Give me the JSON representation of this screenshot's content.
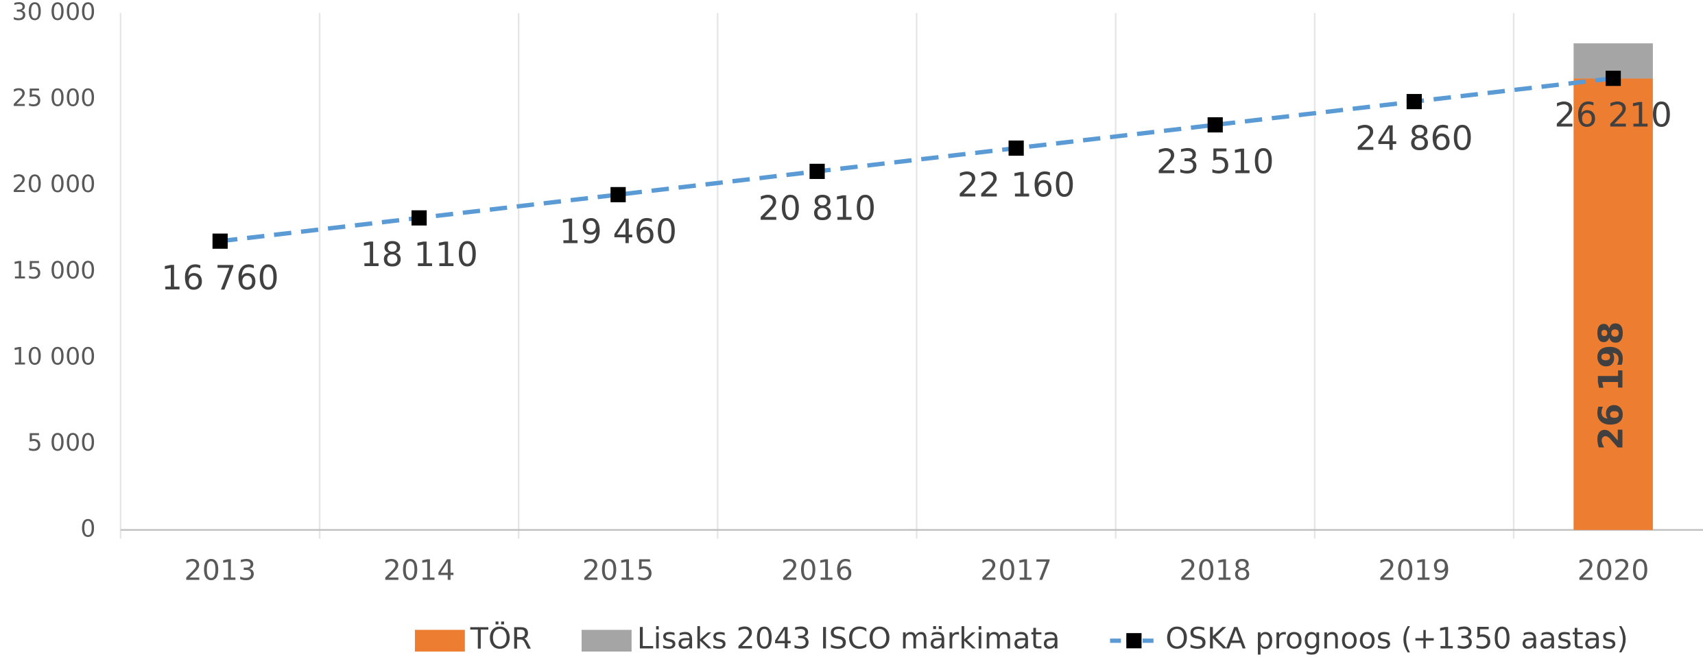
{
  "chart_data": {
    "type": "bar",
    "categories": [
      "2013",
      "2014",
      "2015",
      "2016",
      "2017",
      "2018",
      "2019",
      "2020"
    ],
    "series": [
      {
        "name": "TÖR",
        "color": "#ED7D31",
        "values": [
          null,
          null,
          null,
          null,
          null,
          null,
          null,
          26198
        ],
        "value_labels": [
          null,
          null,
          null,
          null,
          null,
          null,
          null,
          "26 198"
        ]
      },
      {
        "name": "Lisaks 2043 ISCO märkimata",
        "color": "#A5A5A5",
        "values": [
          null,
          null,
          null,
          null,
          null,
          null,
          null,
          2043
        ]
      },
      {
        "name": "OSKA prognoos (+1350 aastas)",
        "type": "line",
        "color": "#5B9BD5",
        "marker_color": "#000000",
        "values": [
          16760,
          18110,
          19460,
          20810,
          22160,
          23510,
          24860,
          26210
        ],
        "value_labels": [
          "16 760",
          "18 110",
          "19 460",
          "20 810",
          "22 160",
          "23 510",
          "24 860",
          "26 210"
        ]
      }
    ],
    "stacked": true,
    "ylim": [
      0,
      30000
    ],
    "yticks": [
      0,
      {
        "value": 5000,
        "label": "5 000"
      },
      {
        "value": 10000,
        "label": "10 000"
      },
      {
        "value": 15000,
        "label": "15 000"
      },
      {
        "value": 20000,
        "label": "20 000"
      },
      {
        "value": 25000,
        "label": "25 000"
      },
      {
        "value": 30000,
        "label": "30 000"
      }
    ],
    "legend": "bottom"
  }
}
